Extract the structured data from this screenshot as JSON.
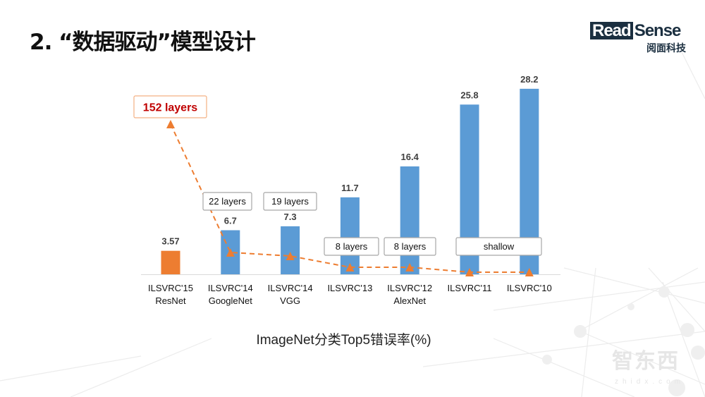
{
  "slide": {
    "title": "2. “数据驱动”模型设计",
    "logo": {
      "read": "Read",
      "sense": "Sense",
      "cn": "阅面科技"
    },
    "caption": "ImageNet分类Top5错误率(%)",
    "watermark": {
      "text": "智东西",
      "url": "zhidx.com"
    }
  },
  "chart_data": {
    "type": "bar",
    "title": "",
    "xlabel": "",
    "ylabel": "",
    "ylim": [
      0,
      30
    ],
    "grid": false,
    "categories": [
      [
        "ILSVRC'15",
        "ResNet"
      ],
      [
        "ILSVRC'14",
        "GoogleNet"
      ],
      [
        "ILSVRC'14",
        "VGG"
      ],
      [
        "ILSVRC'13",
        ""
      ],
      [
        "ILSVRC'12",
        "AlexNet"
      ],
      [
        "ILSVRC'11",
        ""
      ],
      [
        "ILSVRC'10",
        ""
      ]
    ],
    "values": [
      3.57,
      6.7,
      7.3,
      11.7,
      16.4,
      25.8,
      28.2
    ],
    "value_labels": [
      "3.57",
      "6.7",
      "7.3",
      "11.7",
      "16.4",
      "25.8",
      "28.2"
    ],
    "bar_colors": [
      "#ed7d31",
      "#5b9bd5",
      "#5b9bd5",
      "#5b9bd5",
      "#5b9bd5",
      "#5b9bd5",
      "#5b9bd5"
    ],
    "depth_line": {
      "color": "#ed7d31",
      "style": "dashed",
      "marker": "triangle",
      "layers": [
        152,
        22,
        19,
        8,
        8,
        null,
        null
      ],
      "annotations": [
        "152 layers",
        "22 layers",
        "19 layers",
        "8 layers",
        "8 layers",
        "shallow"
      ],
      "highlight_color": "#c00000"
    }
  }
}
